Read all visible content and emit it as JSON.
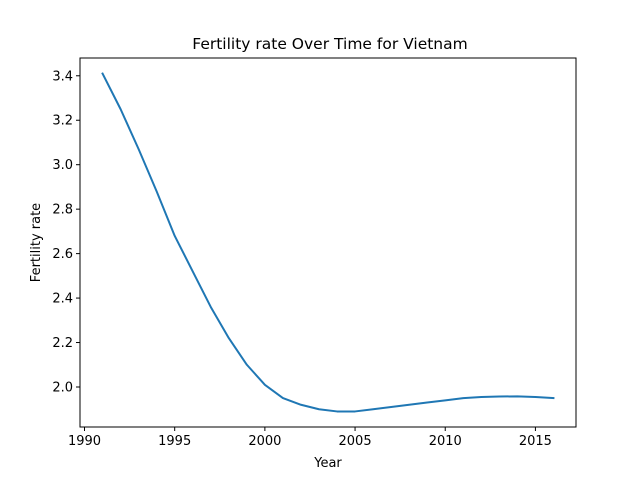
{
  "chart_data": {
    "type": "line",
    "title": "Fertility rate Over Time for Vietnam",
    "xlabel": "Year",
    "ylabel": "Fertility rate",
    "xlim": [
      1989.75,
      2017.25
    ],
    "ylim": [
      1.82,
      3.48
    ],
    "xticks": [
      1990,
      1995,
      2000,
      2005,
      2010,
      2015
    ],
    "xtick_labels": [
      "1990",
      "1995",
      "2000",
      "2005",
      "2010",
      "2015"
    ],
    "yticks": [
      2.0,
      2.2,
      2.4,
      2.6,
      2.8,
      3.0,
      3.2,
      3.4
    ],
    "ytick_labels": [
      "2.0",
      "2.2",
      "2.4",
      "2.6",
      "2.8",
      "3.0",
      "3.2",
      "3.4"
    ],
    "grid": false,
    "legend": "none",
    "series": [
      {
        "color": "#1f77b4",
        "x": [
          1991,
          1992,
          1993,
          1994,
          1995,
          1996,
          1997,
          1998,
          1999,
          2000,
          2001,
          2002,
          2003,
          2004,
          2005,
          2006,
          2007,
          2008,
          2009,
          2010,
          2011,
          2012,
          2013,
          2014,
          2015,
          2016
        ],
        "y": [
          3.41,
          3.25,
          3.07,
          2.88,
          2.68,
          2.52,
          2.36,
          2.22,
          2.1,
          2.01,
          1.95,
          1.92,
          1.9,
          1.89,
          1.89,
          1.9,
          1.91,
          1.92,
          1.93,
          1.94,
          1.95,
          1.955,
          1.957,
          1.958,
          1.955,
          1.95
        ]
      }
    ]
  }
}
